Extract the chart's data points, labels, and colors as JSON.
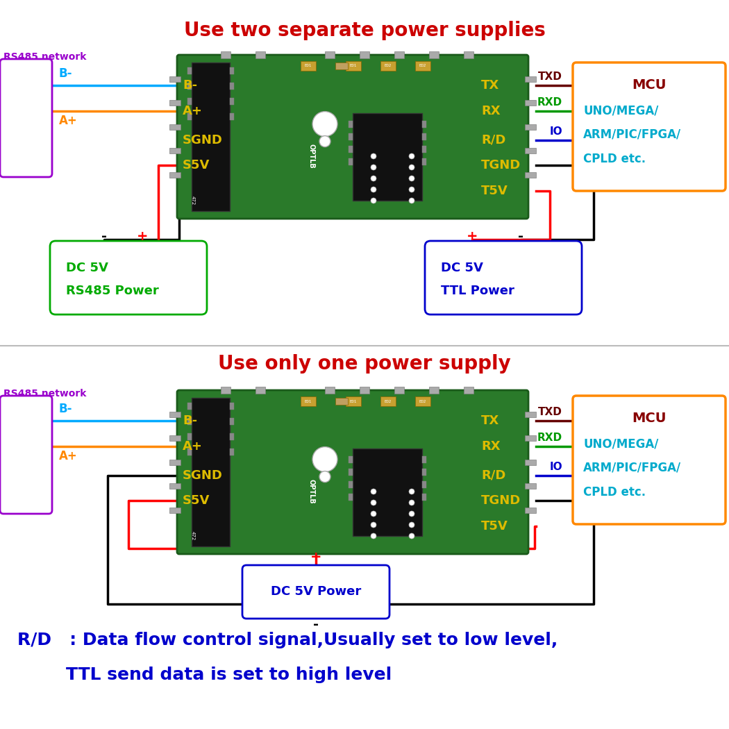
{
  "title1": "Use two separate power supplies",
  "title2": "Use only one power supply",
  "title_color": "#cc0000",
  "title_fontsize": 20,
  "bg_color": "#ffffff",
  "rs485_label": "RS485 network",
  "rs485_color": "#9900cc",
  "mcu_color": "#ff8800",
  "mcu_text_color": "#880000",
  "mcu_sub_color": "#00aacc",
  "dc5v_rs485_label1": "DC 5V",
  "dc5v_rs485_label2": "RS485 Power",
  "dc5v_ttl_label1": "DC 5V",
  "dc5v_ttl_label2": "TTL Power",
  "dc5v_one_label": "DC 5V Power",
  "dc5v_rs485_color": "#00aa00",
  "dc5v_ttl_color": "#0000cc",
  "dc5v_one_color": "#0000cc",
  "note_line1": "R/D   : Data flow control signal,Usually set to low level,",
  "note_line2": "        TTL send data is set to high level",
  "note_color": "#0000cc",
  "note_fontsize": 18,
  "pin_color_yellow": "#ddbb00",
  "wire_bm_color": "#00aaff",
  "wire_ap_color": "#ff8800",
  "wire_tx_color": "#660000",
  "wire_rx_color": "#009900",
  "wire_rd_color": "#0000cc",
  "board_green": "#2a7a2a",
  "board_dark": "#1a5a1a",
  "ic_black": "#111111",
  "pin_silver": "#aaaaaa"
}
